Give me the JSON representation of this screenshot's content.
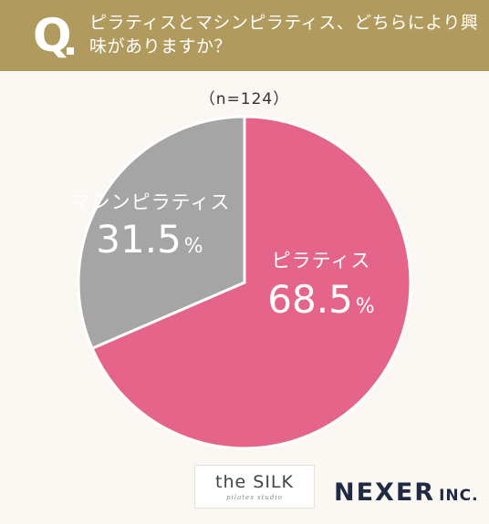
{
  "header": {
    "q_mark": "Q",
    "question": "ピラティスとマシンピラティス、どちらにより興味がありますか？"
  },
  "sample_label": "（n=124）",
  "chart_data": {
    "type": "pie",
    "title": "",
    "slices": [
      {
        "label": "ピラティス",
        "value": 68.5,
        "value_text": "68.5",
        "color": "#e5658a"
      },
      {
        "label": "マシンピラティス",
        "value": 31.5,
        "value_text": "31.5",
        "color": "#a6a5a5"
      }
    ],
    "unit": "%",
    "start_angle_deg": 0,
    "direction": "clockwise"
  },
  "logos": {
    "silk_main": "the SILK",
    "silk_sub": "pilates studio",
    "nexer_main": "NEXER",
    "nexer_inc": "INC."
  }
}
